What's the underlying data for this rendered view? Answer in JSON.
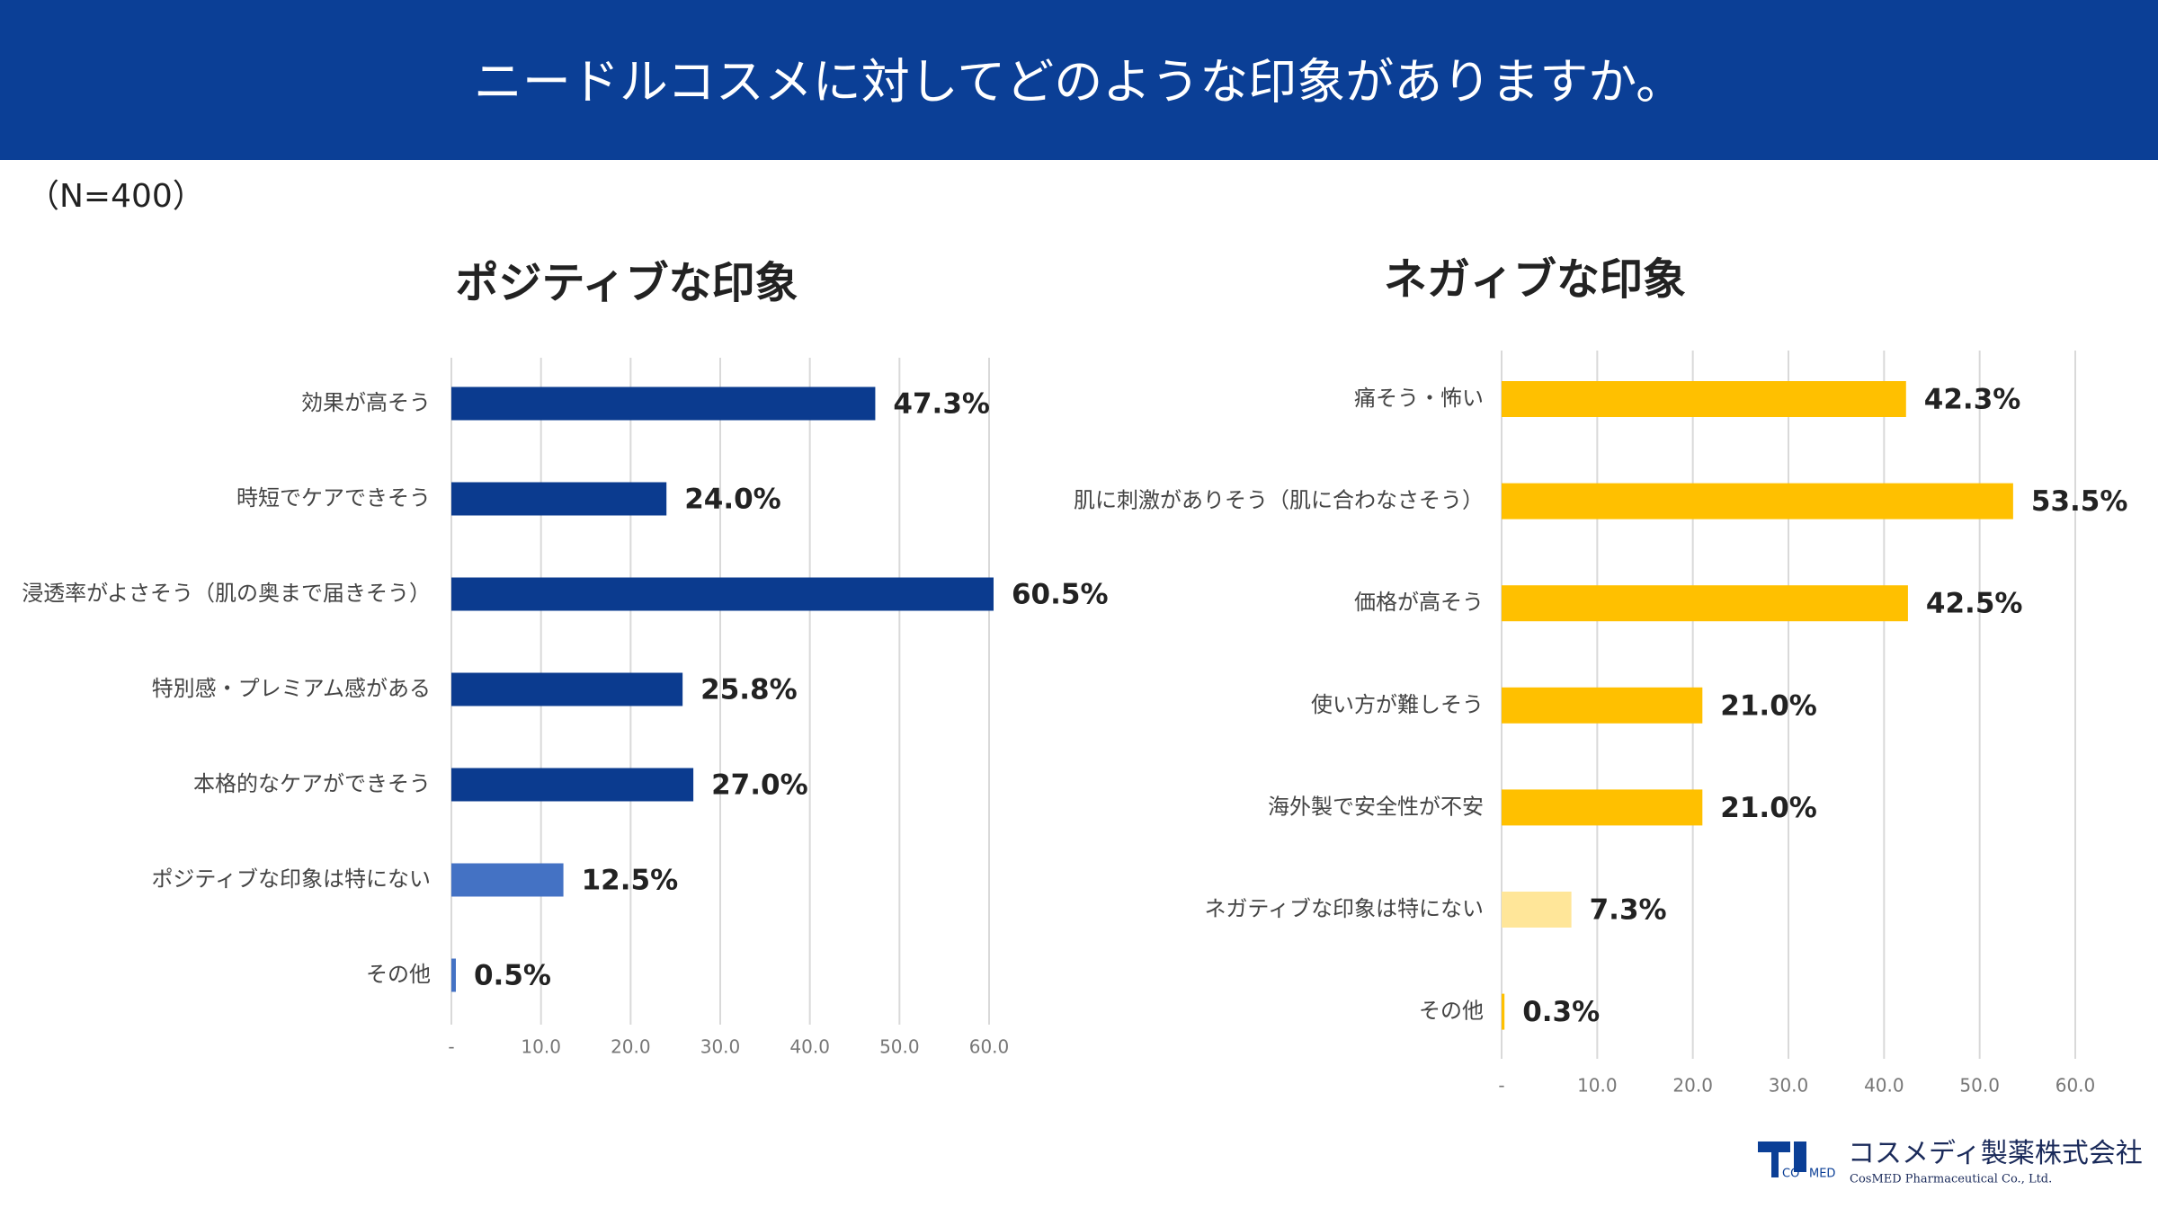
{
  "header": {
    "title": "ニードルコスメに対してどのような印象がありますか。"
  },
  "note": "（N=400）",
  "chart_data": [
    {
      "type": "bar",
      "orientation": "horizontal",
      "title": "ポジティブな印象",
      "categories": [
        "効果が高そう",
        "時短でケアできそう",
        "浸透率がよさそう（肌の奥まで届きそう）",
        "特別感・プレミアム感がある",
        "本格的なケアができそう",
        "ポジティブな印象は特にない",
        "その他"
      ],
      "values": [
        47.3,
        24.0,
        60.5,
        25.8,
        27.0,
        12.5,
        0.5
      ],
      "value_labels": [
        "47.3%",
        "24.0%",
        "60.5%",
        "25.8%",
        "27.0%",
        "12.5%",
        "0.5%"
      ],
      "colors": [
        "#0b3b8f",
        "#0b3b8f",
        "#0b3b8f",
        "#0b3b8f",
        "#0b3b8f",
        "#4472c4",
        "#4472c4"
      ],
      "xlim": [
        0,
        60
      ],
      "xticks": [
        {
          "value": 0,
          "label": "-"
        },
        {
          "value": 10,
          "label": "10.0"
        },
        {
          "value": 20,
          "label": "20.0"
        },
        {
          "value": 30,
          "label": "30.0"
        },
        {
          "value": 40,
          "label": "40.0"
        },
        {
          "value": 50,
          "label": "50.0"
        },
        {
          "value": 60,
          "label": "60.0"
        }
      ],
      "grid": true
    },
    {
      "type": "bar",
      "orientation": "horizontal",
      "title": "ネガィブな印象",
      "categories": [
        "痛そう・怖い",
        "肌に刺激がありそう（肌に合わなさそう）",
        "価格が高そう",
        "使い方が難しそう",
        "海外製で安全性が不安",
        "ネガティブな印象は特にない",
        "その他"
      ],
      "values": [
        42.3,
        53.5,
        42.5,
        21.0,
        21.0,
        7.3,
        0.3
      ],
      "value_labels": [
        "42.3%",
        "53.5%",
        "42.5%",
        "21.0%",
        "21.0%",
        "7.3%",
        "0.3%"
      ],
      "colors": [
        "#ffc000",
        "#ffc000",
        "#ffc000",
        "#ffc000",
        "#ffc000",
        "#ffe699",
        "#ffc000"
      ],
      "xlim": [
        0,
        60
      ],
      "xticks": [
        {
          "value": 0,
          "label": "-"
        },
        {
          "value": 10,
          "label": "10.0"
        },
        {
          "value": 20,
          "label": "20.0"
        },
        {
          "value": 30,
          "label": "30.0"
        },
        {
          "value": 40,
          "label": "40.0"
        },
        {
          "value": 50,
          "label": "50.0"
        },
        {
          "value": 60,
          "label": "60.0"
        }
      ],
      "grid": true
    }
  ],
  "logo": {
    "name": "コスメディ製薬株式会社",
    "english": "CosMED Pharmaceutical Co., Ltd.",
    "mark": [
      "CO",
      "MED"
    ]
  }
}
